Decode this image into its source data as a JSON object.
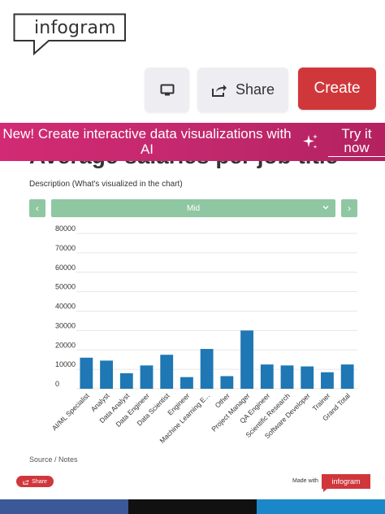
{
  "logo": {
    "text": "infogram"
  },
  "toolbar": {
    "share_label": "Share",
    "create_label": "Create"
  },
  "chart_title": "Average salaries per job title",
  "banner": {
    "text": "New! Create interactive data visualizations with AI",
    "cta": "Try it now"
  },
  "description": "Description (What's visualized in the chart)",
  "filter": {
    "selected": "Mid",
    "prev": "‹",
    "next": "›"
  },
  "chart_data": {
    "type": "bar",
    "title": "Average salaries per job title",
    "categories": [
      "AI/ML Specialist",
      "Analyst",
      "Data Analyst",
      "Data Engineer",
      "Data Scientist",
      "Engineer",
      "Machine Learning E...",
      "Other",
      "Project Manager",
      "QA Engineer",
      "Scientific Research",
      "Software Developer",
      "Trainer",
      "Grand Total"
    ],
    "values": [
      16000,
      14500,
      8000,
      12000,
      17500,
      6000,
      20500,
      6500,
      30000,
      12500,
      12000,
      11500,
      8500,
      12500
    ],
    "y_ticks": [
      "80000",
      "70000",
      "60000",
      "50000",
      "40000",
      "30000",
      "20000",
      "10000",
      "0"
    ],
    "ylim": [
      0,
      80000
    ],
    "bar_color": "#1f77b4",
    "grid": true,
    "xlabel": "",
    "ylabel": ""
  },
  "source": "Source / Notes",
  "share_small": "Share",
  "made_with": {
    "label": "Made with",
    "brand": "infogram"
  },
  "colors": {
    "accent": "#d0373b",
    "banner": "#c72a6e",
    "filter": "#8fc7a3",
    "bar": "#1f77b4"
  }
}
